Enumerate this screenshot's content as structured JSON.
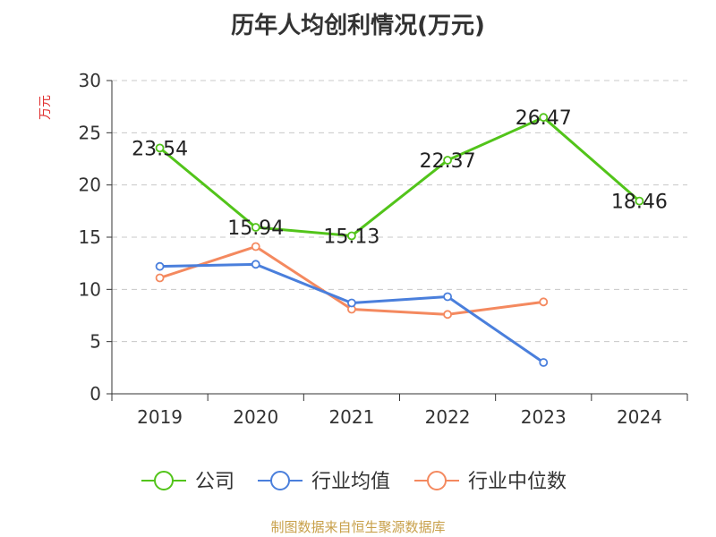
{
  "chart_data": {
    "type": "line",
    "title": "历年人均创利情况(万元)",
    "ylabel": "万元",
    "xlabel": "",
    "categories": [
      "2019",
      "2020",
      "2021",
      "2022",
      "2023",
      "2024"
    ],
    "ylim": [
      0,
      30
    ],
    "yticks": [
      0,
      5,
      10,
      15,
      20,
      25,
      30
    ],
    "grid": true,
    "legend_position": "bottom",
    "series": [
      {
        "name": "公司",
        "color": "#52c41a",
        "values": [
          23.54,
          15.94,
          15.13,
          22.37,
          26.47,
          18.46
        ],
        "labels": [
          "23.54",
          "15.94",
          "15.13",
          "22.37",
          "26.47",
          "18.46"
        ]
      },
      {
        "name": "行业均值",
        "color": "#4a7fdc",
        "values": [
          12.2,
          12.4,
          8.7,
          9.3,
          3.0,
          null
        ]
      },
      {
        "name": "行业中位数",
        "color": "#f4895f",
        "values": [
          11.1,
          14.1,
          8.1,
          7.6,
          8.8,
          null
        ]
      }
    ]
  },
  "source_note": "制图数据来自恒生聚源数据库"
}
